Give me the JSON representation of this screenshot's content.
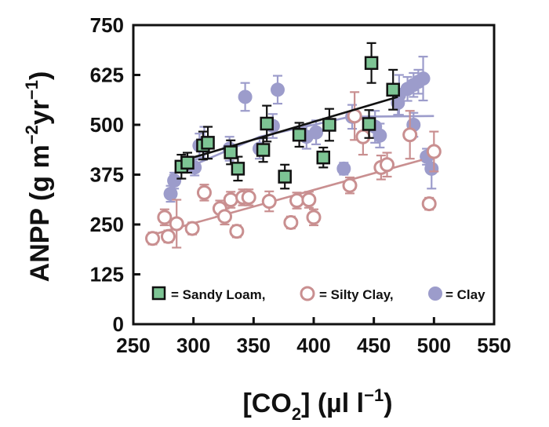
{
  "chart_data": {
    "type": "scatter",
    "title": "",
    "ylabel": {
      "main": "ANPP (g m",
      "exp1": "−2",
      "mid": "yr",
      "exp2": "−1",
      "end": ")"
    },
    "xlabel": {
      "start": "[CO",
      "sub": "2",
      "mid": "] (µl l",
      "exp": "−1",
      "end": ")"
    },
    "xlim": [
      250,
      550
    ],
    "ylim": [
      0,
      750
    ],
    "xticks": [
      "250",
      "300",
      "350",
      "400",
      "450",
      "500",
      "550"
    ],
    "yticks": [
      "0",
      "125",
      "250",
      "375",
      "500",
      "625",
      "750"
    ],
    "legend": {
      "position": "bottom",
      "items": [
        {
          "label": "= Sandy Loam,",
          "series": "sandy"
        },
        {
          "label": "= Silty Clay,",
          "series": "silty"
        },
        {
          "label": "= Clay",
          "series": "clay"
        }
      ]
    },
    "series": [
      {
        "name": "Sandy Loam",
        "key": "sandy",
        "marker": "square",
        "fill": "#7dc494",
        "stroke": "#111111",
        "err_color": "#111111",
        "line_color": "#111111",
        "points": [
          {
            "x": 290,
            "y": 395,
            "e": 30
          },
          {
            "x": 295,
            "y": 405,
            "e": 25
          },
          {
            "x": 308,
            "y": 448,
            "e": 35
          },
          {
            "x": 312,
            "y": 455,
            "e": 40
          },
          {
            "x": 331,
            "y": 431,
            "e": 30
          },
          {
            "x": 337,
            "y": 390,
            "e": 30
          },
          {
            "x": 358,
            "y": 437,
            "e": 30
          },
          {
            "x": 361,
            "y": 503,
            "e": 45
          },
          {
            "x": 376,
            "y": 370,
            "e": 30
          },
          {
            "x": 388,
            "y": 475,
            "e": 30
          },
          {
            "x": 408,
            "y": 418,
            "e": 25
          },
          {
            "x": 413,
            "y": 500,
            "e": 40
          },
          {
            "x": 446,
            "y": 502,
            "e": 35
          },
          {
            "x": 448,
            "y": 655,
            "e": 50
          },
          {
            "x": 466,
            "y": 588,
            "e": 50
          }
        ],
        "trend": [
          [
            285,
            405
          ],
          [
            470,
            570
          ]
        ]
      },
      {
        "name": "Silty Clay",
        "key": "silty",
        "marker": "open-circle",
        "fill": "#ffffff",
        "stroke": "#c98f90",
        "err_color": "#c98f90",
        "line_color": "#c98f90",
        "points": [
          {
            "x": 266,
            "y": 215,
            "e": 15
          },
          {
            "x": 276,
            "y": 268,
            "e": 20
          },
          {
            "x": 279,
            "y": 220,
            "e": 15
          },
          {
            "x": 286,
            "y": 252,
            "e": 60
          },
          {
            "x": 299,
            "y": 240,
            "e": 15
          },
          {
            "x": 309,
            "y": 330,
            "e": 20
          },
          {
            "x": 322,
            "y": 290,
            "e": 20
          },
          {
            "x": 326,
            "y": 270,
            "e": 20
          },
          {
            "x": 331,
            "y": 312,
            "e": 20
          },
          {
            "x": 336,
            "y": 233,
            "e": 15
          },
          {
            "x": 341,
            "y": 318,
            "e": 20
          },
          {
            "x": 346,
            "y": 318,
            "e": 20
          },
          {
            "x": 363,
            "y": 308,
            "e": 25
          },
          {
            "x": 381,
            "y": 255,
            "e": 15
          },
          {
            "x": 386,
            "y": 310,
            "e": 20
          },
          {
            "x": 396,
            "y": 312,
            "e": 20
          },
          {
            "x": 400,
            "y": 268,
            "e": 20
          },
          {
            "x": 430,
            "y": 348,
            "e": 20
          },
          {
            "x": 434,
            "y": 522,
            "e": 60
          },
          {
            "x": 441,
            "y": 470,
            "e": 45
          },
          {
            "x": 456,
            "y": 393,
            "e": 30
          },
          {
            "x": 461,
            "y": 400,
            "e": 30
          },
          {
            "x": 480,
            "y": 475,
            "e": 60
          },
          {
            "x": 496,
            "y": 302,
            "e": 15
          },
          {
            "x": 500,
            "y": 433,
            "e": 50
          }
        ],
        "trend": [
          [
            270,
            228
          ],
          [
            490,
            412
          ]
        ]
      },
      {
        "name": "Clay",
        "key": "clay",
        "marker": "filled-circle",
        "fill": "#9c9ccb",
        "stroke": "#9c9ccb",
        "err_color": "#9c9ccb",
        "line_color": "#9c9ccb",
        "points": [
          {
            "x": 281,
            "y": 327,
            "e": 20
          },
          {
            "x": 284,
            "y": 360,
            "e": 20
          },
          {
            "x": 301,
            "y": 393,
            "e": 20
          },
          {
            "x": 305,
            "y": 448,
            "e": 30
          },
          {
            "x": 309,
            "y": 455,
            "e": 40
          },
          {
            "x": 330,
            "y": 440,
            "e": 30
          },
          {
            "x": 343,
            "y": 570,
            "e": 35
          },
          {
            "x": 355,
            "y": 440,
            "e": 25
          },
          {
            "x": 366,
            "y": 497,
            "e": 30
          },
          {
            "x": 370,
            "y": 588,
            "e": 35
          },
          {
            "x": 394,
            "y": 470,
            "e": 30
          },
          {
            "x": 402,
            "y": 481,
            "e": 30
          },
          {
            "x": 425,
            "y": 390,
            "e": 15
          },
          {
            "x": 432,
            "y": 520,
            "e": 30
          },
          {
            "x": 451,
            "y": 495,
            "e": 40
          },
          {
            "x": 455,
            "y": 473,
            "e": 30
          },
          {
            "x": 471,
            "y": 575,
            "e": 50
          },
          {
            "x": 478,
            "y": 590,
            "e": 30
          },
          {
            "x": 483,
            "y": 600,
            "e": 30
          },
          {
            "x": 487,
            "y": 608,
            "e": 30
          },
          {
            "x": 491,
            "y": 616,
            "e": 55
          },
          {
            "x": 494,
            "y": 420,
            "e": 20
          },
          {
            "x": 498,
            "y": 390,
            "e": 50
          },
          {
            "x": 483,
            "y": 500,
            "e": 30
          },
          {
            "x": 470,
            "y": 555,
            "e": 30
          }
        ],
        "trend": [
          [
            280,
            373
          ],
          [
            355,
            470
          ],
          [
            430,
            520
          ],
          [
            500,
            522
          ]
        ]
      }
    ]
  }
}
